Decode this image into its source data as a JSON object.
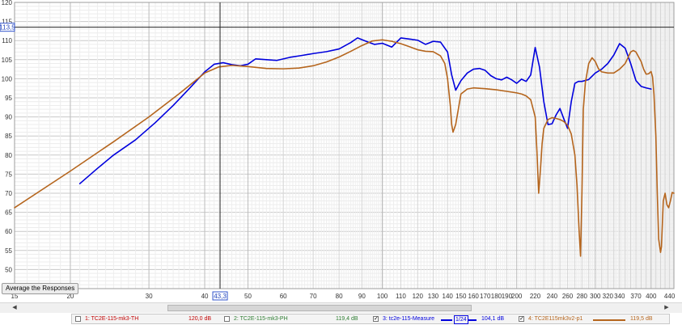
{
  "chart_data": {
    "type": "line",
    "x_scale": "log",
    "xlim": [
      15,
      450
    ],
    "ylim": [
      45,
      120
    ],
    "grid": true,
    "y_ticks": [
      45,
      50,
      55,
      60,
      65,
      70,
      75,
      80,
      85,
      90,
      95,
      100,
      105,
      110,
      115,
      120
    ],
    "x_ticks": [
      15,
      20,
      30,
      40,
      50,
      60,
      70,
      80,
      90,
      100,
      110,
      120,
      130,
      140,
      150,
      160,
      170,
      180,
      190,
      200,
      210,
      220,
      230,
      240,
      250,
      260,
      270,
      280,
      290,
      300,
      310,
      320,
      330,
      340,
      350,
      360,
      370,
      380,
      390,
      400,
      410,
      420,
      430,
      440
    ],
    "x_tick_labels": [
      "15",
      "20",
      "30",
      "40",
      "50",
      "60",
      "70",
      "80",
      "90",
      "100",
      "110",
      "120",
      "130",
      "140",
      "150",
      "160",
      "170",
      "180",
      "190",
      "200",
      "210",
      "220",
      "230",
      "240",
      "250",
      "260",
      "270",
      "280",
      "290",
      "300",
      "310",
      "320",
      "330",
      "340",
      "350",
      "360",
      "370",
      "380",
      "390",
      "400",
      "410",
      "420",
      "430",
      "440"
    ],
    "x_tick_labels_shown": [
      15,
      20,
      30,
      40,
      50,
      60,
      70,
      80,
      90,
      100,
      110,
      120,
      130,
      140,
      150,
      160,
      170,
      180,
      190,
      200,
      220,
      240,
      260,
      280,
      300,
      320,
      340,
      370,
      400,
      440
    ],
    "cursor": {
      "x": 43.3,
      "y": 113.5,
      "x_label": "43,3",
      "y_label": "113,5"
    },
    "series": [
      {
        "name": "tc2e-115-Measure",
        "color": "#0000dd",
        "x": [
          21,
          23,
          25,
          28,
          31,
          34,
          37,
          40,
          42,
          44,
          46,
          48,
          50,
          52,
          55,
          58,
          62,
          66,
          70,
          75,
          80,
          85,
          88,
          92,
          96,
          100,
          105,
          110,
          115,
          120,
          125,
          130,
          135,
          140,
          143,
          146,
          150,
          155,
          160,
          165,
          170,
          175,
          180,
          185,
          190,
          195,
          200,
          205,
          210,
          215,
          220,
          225,
          230,
          235,
          240,
          245,
          250,
          255,
          260,
          265,
          270,
          275,
          280,
          290,
          300,
          310,
          320,
          330,
          340,
          350,
          360,
          370,
          380,
          390,
          400
        ],
        "y": [
          72.5,
          76.5,
          80,
          84,
          88.5,
          93,
          97.5,
          101.8,
          103.8,
          104.2,
          103.7,
          103.4,
          103.8,
          105.2,
          105,
          104.8,
          105.6,
          106.1,
          106.6,
          107.1,
          107.8,
          109.5,
          110.7,
          109.8,
          109.0,
          109.3,
          108.3,
          110.7,
          110.4,
          110.1,
          109.0,
          109.8,
          109.6,
          107.0,
          101.0,
          97.0,
          99.5,
          101.5,
          102.5,
          102.7,
          102.2,
          100.8,
          100.0,
          99.7,
          100.4,
          99.7,
          98.8,
          99.9,
          99.3,
          101.0,
          108.2,
          103.0,
          94.0,
          88.0,
          88.2,
          90.5,
          92.2,
          89.5,
          87.0,
          94.0,
          98.8,
          99.3,
          99.3,
          99.8,
          101.5,
          102.5,
          104.0,
          106.2,
          109.2,
          108.0,
          104.0,
          99.5,
          98.0,
          97.6,
          97.3
        ]
      },
      {
        "name": "TC2E115mk3v2-p1",
        "color": "#b5651d",
        "x": [
          15,
          20,
          25,
          30,
          35,
          40,
          43,
          46,
          50,
          55,
          60,
          65,
          70,
          75,
          80,
          85,
          90,
          95,
          100,
          105,
          110,
          115,
          120,
          125,
          130,
          135,
          138,
          140,
          142,
          143,
          144,
          146,
          148,
          150,
          155,
          160,
          170,
          180,
          190,
          200,
          205,
          210,
          215,
          220,
          222,
          224,
          226,
          228,
          230,
          235,
          240,
          245,
          250,
          255,
          260,
          265,
          270,
          273,
          276,
          278,
          280,
          282,
          285,
          290,
          295,
          300,
          305,
          310,
          320,
          330,
          340,
          350,
          355,
          360,
          365,
          370,
          380,
          385,
          390,
          395,
          400,
          403,
          406,
          410,
          413,
          416,
          420,
          422,
          424,
          426,
          430,
          434,
          438,
          442,
          446,
          450
        ],
        "y": [
          66.2,
          75.8,
          83.5,
          90.0,
          96.0,
          101.5,
          103.1,
          103.5,
          103.2,
          102.7,
          102.6,
          102.8,
          103.4,
          104.4,
          105.7,
          107.2,
          108.7,
          109.9,
          110.2,
          109.8,
          109.2,
          108.4,
          107.6,
          107.2,
          107.1,
          106.0,
          104.0,
          100.0,
          93.0,
          88.0,
          86.0,
          88.0,
          92.0,
          96.0,
          97.3,
          97.6,
          97.4,
          97.1,
          96.7,
          96.3,
          96.0,
          95.5,
          94.5,
          90.0,
          81.0,
          70.0,
          76.0,
          83.0,
          87.0,
          89.3,
          89.8,
          89.6,
          89.3,
          88.8,
          87.8,
          85.5,
          80.0,
          72.0,
          60.0,
          53.5,
          70.0,
          92.0,
          99.0,
          104.0,
          105.5,
          104.5,
          102.6,
          101.8,
          101.5,
          101.5,
          102.5,
          104.0,
          105.5,
          107.0,
          107.4,
          107.0,
          104.5,
          102.5,
          101.2,
          101.3,
          101.9,
          100.5,
          96.0,
          85.0,
          70.0,
          58.0,
          54.5,
          56.0,
          62.0,
          68.0,
          70.0,
          67.0,
          66.2,
          68.0,
          70.2,
          70.0
        ]
      }
    ]
  },
  "ui": {
    "average_button": "Average the Responses"
  },
  "legend": {
    "items": [
      {
        "index_label": "1: TC2E-115-mk3-TH",
        "value": "120,0 dB",
        "checked": false,
        "color": "#c00000"
      },
      {
        "index_label": "2: TC2E-115-mk3-PH",
        "value": "119,4 dB",
        "checked": false,
        "color": "#2e7d32"
      },
      {
        "index_label": "3: tc2e-115-Measure",
        "value": "104,1 dB",
        "checked": true,
        "color": "#0000dd",
        "smoothing": "1/24"
      },
      {
        "index_label": "4: TC2E115mk3v2-p1",
        "value": "119,5 dB",
        "checked": true,
        "color": "#b5651d"
      }
    ]
  }
}
